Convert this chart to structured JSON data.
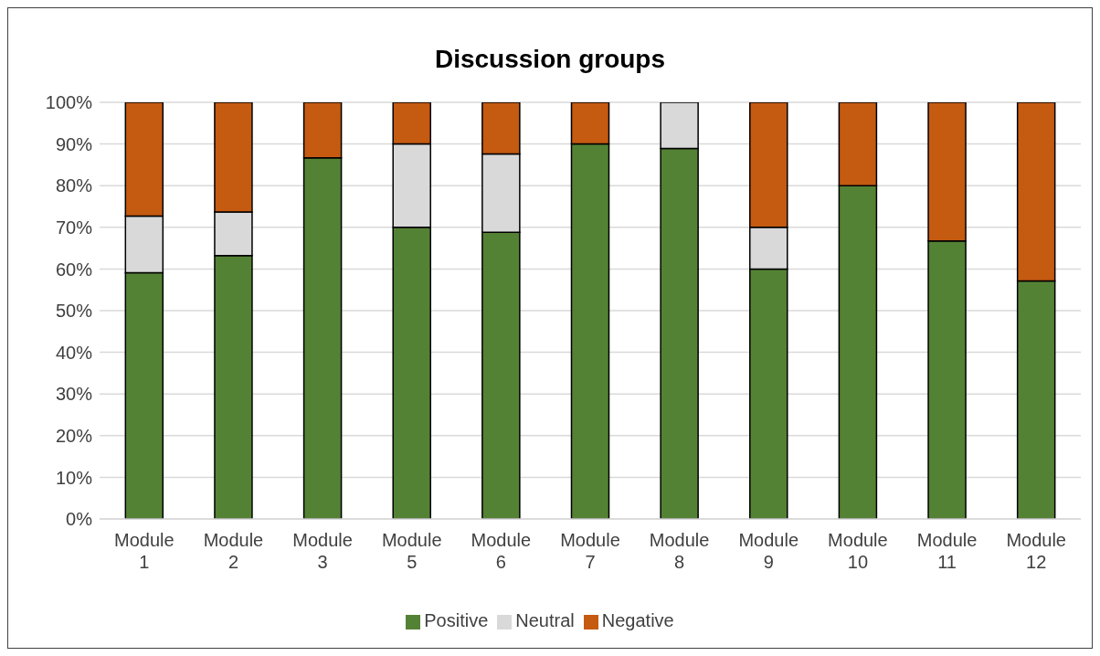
{
  "chart_data": {
    "type": "bar",
    "title": "Discussion groups",
    "stacked": true,
    "categories": [
      "Module 1",
      "Module 2",
      "Module 3",
      "Module 5",
      "Module 6",
      "Module 7",
      "Module 8",
      "Module 9",
      "Module 10",
      "Module 11",
      "Module 12"
    ],
    "series": [
      {
        "name": "Positive",
        "color": "#548235",
        "values": [
          59.1,
          63.2,
          86.7,
          70,
          68.8,
          90,
          88.9,
          60,
          80,
          66.7,
          57.1
        ]
      },
      {
        "name": "Neutral",
        "color": "#d9d9d9",
        "values": [
          13.6,
          10.5,
          0,
          20,
          18.8,
          0,
          11.1,
          10,
          0,
          0,
          0
        ]
      },
      {
        "name": "Negative",
        "color": "#c55a11",
        "values": [
          27.3,
          26.3,
          13.3,
          10,
          12.4,
          10,
          0,
          30,
          20,
          33.3,
          42.9
        ]
      }
    ],
    "ylim": [
      0,
      100
    ],
    "yticks": [
      {
        "value": 0,
        "label": "0%"
      },
      {
        "value": 10,
        "label": "10%"
      },
      {
        "value": 20,
        "label": "20%"
      },
      {
        "value": 30,
        "label": "30%"
      },
      {
        "value": 40,
        "label": "40%"
      },
      {
        "value": 50,
        "label": "50%"
      },
      {
        "value": 60,
        "label": "60%"
      },
      {
        "value": 70,
        "label": "70%"
      },
      {
        "value": 80,
        "label": "80%"
      },
      {
        "value": 90,
        "label": "90%"
      },
      {
        "value": 100,
        "label": "100%"
      }
    ],
    "grid": "y",
    "legend": "bottom"
  }
}
